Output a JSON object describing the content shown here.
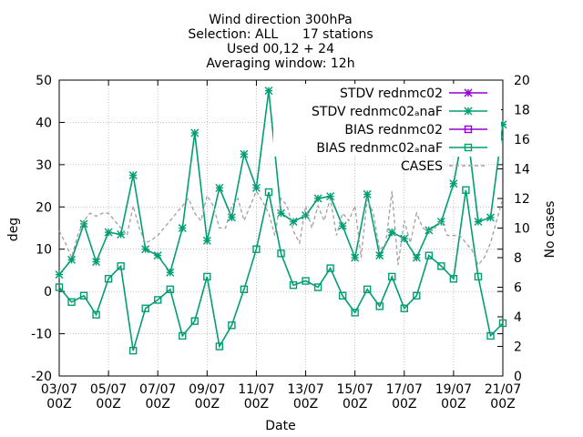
{
  "chart_data": {
    "type": "line",
    "title_lines": [
      "Wind direction 300hPa",
      "Selection: ALL      17 stations",
      "Used 00,12 + 24",
      "Averaging window: 12h"
    ],
    "xlabel": "Date",
    "ylabel": "deg",
    "y2label": "No cases",
    "ylim": [
      -20,
      50
    ],
    "y2lim": [
      0,
      20
    ],
    "yticks": [
      -20,
      -10,
      0,
      10,
      20,
      30,
      40,
      50
    ],
    "y2ticks": [
      0,
      2,
      4,
      6,
      8,
      10,
      12,
      14,
      16,
      18,
      20
    ],
    "xlim": [
      "2023-07-03 00Z",
      "2023-07-21 00Z"
    ],
    "xticks": [
      {
        "line1": "03/07",
        "line2": "00Z",
        "day": 0
      },
      {
        "line1": "05/07",
        "line2": "00Z",
        "day": 2
      },
      {
        "line1": "07/07",
        "line2": "00Z",
        "day": 4
      },
      {
        "line1": "09/07",
        "line2": "00Z",
        "day": 6
      },
      {
        "line1": "11/07",
        "line2": "00Z",
        "day": 8
      },
      {
        "line1": "13/07",
        "line2": "00Z",
        "day": 10
      },
      {
        "line1": "15/07",
        "line2": "00Z",
        "day": 12
      },
      {
        "line1": "17/07",
        "line2": "00Z",
        "day": 14
      },
      {
        "line1": "19/07",
        "line2": "00Z",
        "day": 16
      },
      {
        "line1": "21/07",
        "line2": "00Z",
        "day": 18
      }
    ],
    "legend_position": "top-right",
    "legend": [
      {
        "label": "STDV rednmc02",
        "color": "#9400d3",
        "marker": "star",
        "dash": "solid"
      },
      {
        "label": "STDV rednmc02ₐnaF",
        "color": "#009e73",
        "marker": "star",
        "dash": "solid"
      },
      {
        "label": "BIAS rednmc02",
        "color": "#9400d3",
        "marker": "square",
        "dash": "solid"
      },
      {
        "label": "BIAS rednmc02ₐnaF",
        "color": "#009e73",
        "marker": "square",
        "dash": "solid"
      },
      {
        "label": "CASES",
        "color": "#a0a0a0",
        "marker": "none",
        "dash": "dashed"
      }
    ],
    "x_days": [
      0,
      0.5,
      1,
      1.5,
      2,
      2.5,
      3,
      3.5,
      4,
      4.5,
      5,
      5.5,
      6,
      6.5,
      7,
      7.5,
      8,
      8.5,
      9,
      9.5,
      10,
      10.5,
      11,
      11.5,
      12,
      12.5,
      13,
      13.5,
      14,
      14.5,
      15,
      15.5,
      16,
      16.5,
      17,
      17.5,
      18
    ],
    "series": [
      {
        "name": "STDV rednmc02ₐnaF",
        "color": "#009e73",
        "marker": "star",
        "axis": "y",
        "values": [
          4.0,
          7.5,
          16.0,
          7.0,
          14.0,
          13.5,
          27.5,
          10.0,
          8.5,
          4.5,
          15.0,
          37.5,
          12.0,
          24.5,
          17.5,
          32.5,
          24.5,
          47.5,
          18.5,
          16.5,
          18.0,
          22.0,
          22.5,
          15.5,
          8.0,
          23.0,
          8.5,
          14.0,
          12.5,
          8.0,
          14.5,
          16.5,
          25.5,
          41.0,
          16.5,
          17.5,
          39.5
        ]
      },
      {
        "name": "BIAS rednmc02ₐnaF",
        "color": "#009e73",
        "marker": "square",
        "axis": "y",
        "values": [
          1.0,
          -2.5,
          -1.0,
          -5.5,
          3.0,
          6.0,
          -14.0,
          -4.0,
          -2.0,
          0.5,
          -10.5,
          -7.0,
          3.5,
          -13.0,
          -8.0,
          0.5,
          10.0,
          23.5,
          9.0,
          1.5,
          2.5,
          1.0,
          5.5,
          -1.0,
          -5.0,
          0.5,
          -3.5,
          3.5,
          -4.0,
          -1.0,
          8.5,
          6.0,
          3.0,
          24.0,
          3.5,
          -10.5,
          -7.5
        ]
      },
      {
        "name": "CASES",
        "color": "#a0a0a0",
        "dash": "dashed",
        "axis": "y2",
        "x": [
          0,
          0.25,
          0.5,
          0.75,
          1,
          1.25,
          1.5,
          1.75,
          2,
          2.25,
          2.5,
          2.75,
          3,
          3.25,
          3.5,
          3.75,
          4,
          4.25,
          4.5,
          4.75,
          5,
          5.25,
          5.5,
          5.75,
          6,
          6.25,
          6.5,
          6.75,
          7,
          7.25,
          7.5,
          7.75,
          8,
          8.25,
          8.5,
          8.75,
          9,
          9.25,
          9.5,
          9.75,
          10,
          10.25,
          10.5,
          10.75,
          11,
          11.25,
          11.5,
          11.75,
          12,
          12.25,
          12.5,
          12.75,
          13,
          13.25,
          13.5,
          13.75,
          14,
          14.25,
          14.5,
          14.75,
          15,
          15.25,
          15.5,
          15.75,
          16,
          16.25,
          16.5,
          16.75,
          17,
          17.25,
          17.5,
          17.75,
          18
        ],
        "values": [
          9.8,
          9.0,
          8.0,
          9.5,
          10.5,
          11.0,
          10.8,
          11.0,
          11.0,
          10.5,
          10.0,
          9.5,
          11.5,
          10.0,
          9.0,
          9.2,
          9.5,
          10.0,
          10.5,
          11.0,
          11.5,
          12.0,
          11.0,
          10.5,
          12.2,
          11.5,
          10.0,
          10.0,
          11.5,
          12.0,
          10.5,
          11.5,
          12.5,
          11.8,
          11.0,
          9.5,
          12.0,
          11.5,
          9.8,
          9.0,
          11.5,
          10.0,
          11.5,
          10.5,
          12.0,
          9.5,
          11.0,
          10.5,
          11.5,
          8.0,
          12.0,
          11.0,
          8.5,
          9.0,
          12.5,
          7.5,
          10.5,
          9.0,
          11.0,
          10.0,
          9.8,
          10.0,
          10.5,
          9.5,
          9.5,
          9.5,
          9.0,
          8.5,
          7.5,
          8.0,
          9.0,
          10.5,
          12.0
        ]
      }
    ]
  }
}
